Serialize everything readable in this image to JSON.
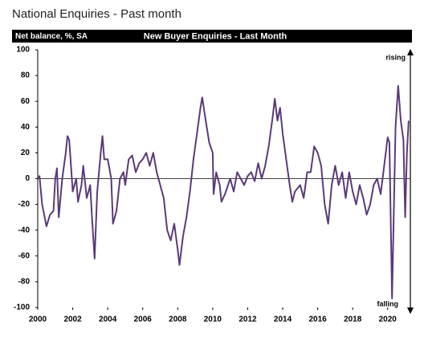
{
  "chart_data": {
    "type": "line",
    "title": "National Enquiries - Past month",
    "subtitle": "New Buyer Enquiries - Last Month",
    "y_label": "Net balance, %, SA",
    "annotations": [
      "rising",
      "falling"
    ],
    "xlim": [
      2000,
      2021.25
    ],
    "xticks": [
      2000,
      2002,
      2004,
      2006,
      2008,
      2010,
      2012,
      2014,
      2016,
      2018,
      2020
    ],
    "ylim": [
      -100,
      100
    ],
    "yticks": [
      -100,
      -80,
      -60,
      -40,
      -20,
      0,
      20,
      40,
      60,
      80,
      100
    ],
    "series": [
      {
        "color": "#5b3a78",
        "x": [
          2000.0,
          2000.1,
          2000.25,
          2000.5,
          2000.7,
          2000.9,
          2001.0,
          2001.1,
          2001.2,
          2001.4,
          2001.6,
          2001.7,
          2001.8,
          2002.0,
          2002.2,
          2002.3,
          2002.5,
          2002.6,
          2002.8,
          2003.0,
          2003.1,
          2003.25,
          2003.4,
          2003.6,
          2003.7,
          2003.8,
          2004.0,
          2004.2,
          2004.3,
          2004.5,
          2004.7,
          2004.9,
          2005.0,
          2005.2,
          2005.4,
          2005.6,
          2005.8,
          2006.0,
          2006.2,
          2006.4,
          2006.6,
          2006.8,
          2007.0,
          2007.2,
          2007.4,
          2007.6,
          2007.8,
          2008.0,
          2008.1,
          2008.3,
          2008.5,
          2008.7,
          2008.9,
          2009.1,
          2009.3,
          2009.4,
          2009.6,
          2009.8,
          2010.0,
          2010.05,
          2010.2,
          2010.4,
          2010.5,
          2010.7,
          2011.0,
          2011.2,
          2011.4,
          2011.6,
          2011.8,
          2012.0,
          2012.2,
          2012.4,
          2012.6,
          2012.8,
          2013.0,
          2013.2,
          2013.4,
          2013.55,
          2013.7,
          2013.85,
          2014.0,
          2014.2,
          2014.4,
          2014.55,
          2014.7,
          2015.0,
          2015.2,
          2015.4,
          2015.6,
          2015.8,
          2016.0,
          2016.2,
          2016.4,
          2016.6,
          2016.8,
          2017.0,
          2017.2,
          2017.4,
          2017.6,
          2017.8,
          2018.0,
          2018.2,
          2018.4,
          2018.6,
          2018.8,
          2019.0,
          2019.2,
          2019.4,
          2019.6,
          2019.8,
          2020.0,
          2020.1,
          2020.25,
          2020.45,
          2020.6,
          2020.75,
          2020.9,
          2021.0,
          2021.1,
          2021.2
        ],
        "values": [
          0,
          2,
          -20,
          -37,
          -28,
          -25,
          0,
          8,
          -30,
          0,
          20,
          33,
          30,
          -10,
          0,
          -18,
          -5,
          10,
          -15,
          -5,
          -30,
          -62,
          -10,
          20,
          33,
          15,
          15,
          0,
          -35,
          -25,
          0,
          5,
          -5,
          15,
          18,
          5,
          12,
          15,
          20,
          10,
          20,
          5,
          -5,
          -15,
          -40,
          -48,
          -35,
          -55,
          -67,
          -45,
          -30,
          -10,
          15,
          35,
          55,
          63,
          45,
          28,
          20,
          -12,
          5,
          -5,
          -18,
          -12,
          0,
          -10,
          5,
          0,
          -5,
          2,
          5,
          -2,
          12,
          0,
          10,
          25,
          45,
          62,
          45,
          55,
          35,
          15,
          -5,
          -18,
          -10,
          -5,
          -15,
          5,
          5,
          25,
          20,
          10,
          -20,
          -35,
          -5,
          10,
          -5,
          5,
          -15,
          5,
          -10,
          -20,
          -5,
          -15,
          -28,
          -20,
          -5,
          0,
          -12,
          10,
          32,
          28,
          -93,
          40,
          72,
          45,
          30,
          -30,
          20,
          45
        ]
      }
    ]
  }
}
